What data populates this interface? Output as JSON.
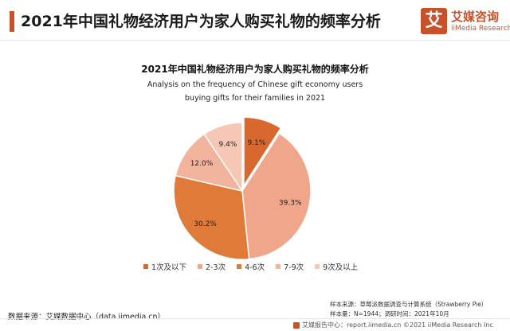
{
  "header": {
    "title": "2021年中国礼物经济用户为家人购买礼物的频率分析",
    "accent_color": "#c8512a"
  },
  "logo": {
    "mark": "艾",
    "name_cn": "艾媒咨询",
    "name_en": "iiMedia Research"
  },
  "chart_data": {
    "type": "pie",
    "title": "2021年中国礼物经济用户为家人购买礼物的频率分析",
    "subtitle": "Analysis on the frequency of Chinese gift economy users buying gifts for their families in 2021",
    "categories": [
      "1次及以下",
      "2-3次",
      "4-6次",
      "7-9次",
      "9次及以上"
    ],
    "values": [
      9.1,
      39.3,
      30.2,
      12.0,
      9.4
    ],
    "labels": [
      "9.1%",
      "39.3%",
      "30.2%",
      "12.0%",
      "9.4%"
    ],
    "colors": [
      "#d9682e",
      "#f0a68a",
      "#e07a38",
      "#f2b39c",
      "#f5c7b4"
    ],
    "legend_position": "bottom"
  },
  "notes": {
    "sample_source": "样本来源：草莓派数据调查与计算系统（Strawberry Pie）",
    "sample_size": "样本量：N=1944；调研时间：2021年10月"
  },
  "data_source": "数据来源：艾媒数据中心（data.iimedia.cn）",
  "footer": {
    "text": "艾媒报告中心：report.iimedia.cn  ©2021  iiMedia Research  Inc"
  }
}
